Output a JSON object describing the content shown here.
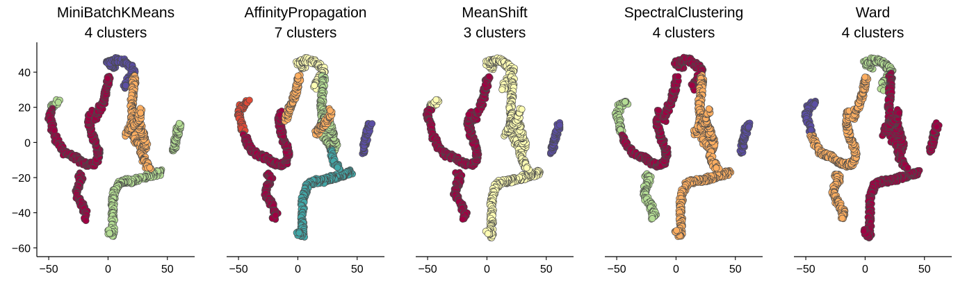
{
  "chart_data": {
    "type": "scatter",
    "shared_x_ticks": [
      -50,
      0,
      50
    ],
    "shared_y_ticks": [
      -60,
      -40,
      -20,
      0,
      20,
      40
    ],
    "xlim": [
      -60,
      73
    ],
    "ylim": [
      -65,
      57
    ],
    "palette": {
      "crimson": "#9e0142",
      "red": "#e04a36",
      "orange": "#fdae61",
      "yellow": "#fefdb4",
      "green": "#b4dd94",
      "teal": "#43a8a8",
      "purple": "#5b4ea3"
    },
    "trajectories": {
      "top_arc": [
        [
          5,
          43
        ],
        [
          2,
          44
        ],
        [
          0,
          45
        ],
        [
          3,
          46
        ],
        [
          7,
          47
        ],
        [
          12,
          46.5
        ],
        [
          15,
          45
        ],
        [
          17,
          44
        ]
      ],
      "top_right_dip": [
        [
          17,
          44
        ],
        [
          19,
          43
        ],
        [
          21,
          42
        ],
        [
          22,
          41
        ],
        [
          21,
          39
        ],
        [
          19,
          37
        ],
        [
          17,
          35
        ],
        [
          15,
          33
        ],
        [
          14,
          31
        ]
      ],
      "left_arm_top": [
        [
          -48,
          20
        ],
        [
          -46,
          21
        ],
        [
          -44,
          22
        ],
        [
          -42,
          23
        ]
      ],
      "left_arm": [
        [
          -48,
          18
        ],
        [
          -50,
          16
        ],
        [
          -49,
          14
        ],
        [
          -48,
          12
        ],
        [
          -47,
          10
        ],
        [
          -47,
          8
        ],
        [
          -46,
          6
        ]
      ],
      "left_hook": [
        [
          -45,
          3
        ],
        [
          -43,
          1
        ],
        [
          -42,
          -1
        ],
        [
          -40,
          -3
        ],
        [
          -38,
          -5
        ],
        [
          -34,
          -7
        ],
        [
          -30,
          -8
        ],
        [
          -26,
          -9
        ],
        [
          -23,
          -11
        ],
        [
          -19,
          -12
        ],
        [
          -15,
          -13
        ],
        [
          -11,
          -12
        ],
        [
          -9,
          -10
        ],
        [
          -8,
          -7
        ],
        [
          -9,
          -3
        ],
        [
          -11,
          0
        ],
        [
          -13,
          3
        ],
        [
          -14,
          6
        ],
        [
          -15,
          9
        ],
        [
          -16,
          12
        ],
        [
          -15,
          15
        ],
        [
          -14,
          17
        ]
      ],
      "center_spine": [
        [
          -10,
          13
        ],
        [
          -9,
          16
        ],
        [
          -7,
          19
        ],
        [
          -5,
          22
        ],
        [
          -3,
          25
        ],
        [
          -2,
          28
        ],
        [
          -1,
          31
        ],
        [
          0,
          34
        ],
        [
          1,
          37
        ]
      ],
      "lower_left": [
        [
          -25,
          -18
        ],
        [
          -22,
          -20
        ],
        [
          -24,
          -23
        ],
        [
          -26,
          -26
        ],
        [
          -27,
          -29
        ],
        [
          -25,
          -32
        ],
        [
          -22,
          -35
        ],
        [
          -20,
          -38
        ],
        [
          -18,
          -41
        ],
        [
          -20,
          -43
        ]
      ],
      "right_col_upper": [
        [
          21,
          38
        ],
        [
          22,
          35
        ],
        [
          21,
          31
        ],
        [
          21,
          27
        ],
        [
          20,
          23
        ],
        [
          20,
          19
        ],
        [
          21,
          15
        ],
        [
          20,
          11
        ],
        [
          21,
          7
        ],
        [
          22,
          4
        ]
      ],
      "right_col_lower": [
        [
          22,
          3
        ],
        [
          23,
          1
        ],
        [
          25,
          0
        ],
        [
          28,
          -2
        ],
        [
          30,
          -4
        ],
        [
          32,
          -1
        ],
        [
          30,
          3
        ],
        [
          28,
          7
        ],
        [
          26,
          12
        ]
      ],
      "center_flare": [
        [
          16,
          5
        ],
        [
          18,
          8
        ],
        [
          22,
          10
        ],
        [
          24,
          12
        ],
        [
          26,
          14
        ],
        [
          27,
          16
        ],
        [
          28,
          18
        ]
      ],
      "far_right": [
        [
          55,
          -5
        ],
        [
          56,
          -2
        ],
        [
          57,
          1
        ],
        [
          58,
          4
        ],
        [
          59,
          7
        ],
        [
          60,
          9
        ],
        [
          61,
          10
        ]
      ],
      "bottom_curve": [
        [
          45,
          -17
        ],
        [
          40,
          -18
        ],
        [
          35,
          -19
        ],
        [
          30,
          -20
        ],
        [
          25,
          -21
        ],
        [
          20,
          -22
        ],
        [
          15,
          -22
        ],
        [
          10,
          -23
        ],
        [
          7,
          -26
        ],
        [
          5,
          -30
        ],
        [
          4,
          -34
        ],
        [
          4,
          -38
        ],
        [
          4,
          -42
        ],
        [
          4,
          -46
        ],
        [
          4,
          -50
        ],
        [
          4,
          -53
        ],
        [
          2,
          -52
        ],
        [
          0,
          -51
        ]
      ],
      "right_small_lower": [
        [
          28,
          -5
        ],
        [
          29,
          -8
        ],
        [
          31,
          -11
        ],
        [
          33,
          -13
        ],
        [
          35,
          -14
        ]
      ]
    },
    "panels": [
      {
        "title_line1": "MiniBatchKMeans",
        "title_line2": "4 clusters",
        "show_y_axis": true,
        "groups": [
          {
            "traj": "top_arc",
            "color": "purple"
          },
          {
            "traj": "top_right_dip",
            "color": "purple"
          },
          {
            "traj": "left_arm_top",
            "color": "green"
          },
          {
            "traj": "left_arm",
            "color": "crimson"
          },
          {
            "traj": "left_hook",
            "color": "crimson"
          },
          {
            "traj": "center_spine",
            "color": "crimson"
          },
          {
            "traj": "lower_left",
            "color": "crimson"
          },
          {
            "traj": "right_col_upper",
            "color": "orange"
          },
          {
            "traj": "right_col_lower",
            "color": "orange"
          },
          {
            "traj": "center_flare",
            "color": "orange"
          },
          {
            "traj": "far_right",
            "color": "green"
          },
          {
            "traj": "bottom_curve",
            "color": "green"
          },
          {
            "traj": "right_small_lower",
            "color": "orange"
          }
        ]
      },
      {
        "title_line1": "AffinityPropagation",
        "title_line2": "7 clusters",
        "show_y_axis": false,
        "groups": [
          {
            "traj": "top_arc",
            "color": "yellow"
          },
          {
            "traj": "top_right_dip",
            "color": "yellow"
          },
          {
            "traj": "left_arm_top",
            "color": "red"
          },
          {
            "traj": "left_arm",
            "color": "red"
          },
          {
            "traj": "left_hook",
            "color": "crimson"
          },
          {
            "traj": "center_spine",
            "color": "orange"
          },
          {
            "traj": "lower_left",
            "color": "crimson"
          },
          {
            "traj": "right_col_upper",
            "color": "green"
          },
          {
            "traj": "right_col_lower",
            "color": "green"
          },
          {
            "traj": "center_flare",
            "color": "orange"
          },
          {
            "traj": "far_right",
            "color": "purple"
          },
          {
            "traj": "bottom_curve",
            "color": "teal"
          },
          {
            "traj": "right_small_lower",
            "color": "teal"
          }
        ]
      },
      {
        "title_line1": "MeanShift",
        "title_line2": "3 clusters",
        "show_y_axis": false,
        "groups": [
          {
            "traj": "top_arc",
            "color": "yellow"
          },
          {
            "traj": "top_right_dip",
            "color": "yellow"
          },
          {
            "traj": "left_arm_top",
            "color": "yellow"
          },
          {
            "traj": "left_arm",
            "color": "crimson"
          },
          {
            "traj": "left_hook",
            "color": "crimson"
          },
          {
            "traj": "center_spine",
            "color": "crimson"
          },
          {
            "traj": "lower_left",
            "color": "crimson"
          },
          {
            "traj": "right_col_upper",
            "color": "yellow"
          },
          {
            "traj": "right_col_lower",
            "color": "yellow"
          },
          {
            "traj": "center_flare",
            "color": "yellow"
          },
          {
            "traj": "far_right",
            "color": "purple"
          },
          {
            "traj": "bottom_curve",
            "color": "yellow"
          },
          {
            "traj": "right_small_lower",
            "color": "yellow"
          }
        ]
      },
      {
        "title_line1": "SpectralClustering",
        "title_line2": "4 clusters",
        "show_y_axis": false,
        "groups": [
          {
            "traj": "top_arc",
            "color": "crimson"
          },
          {
            "traj": "top_right_dip",
            "color": "crimson"
          },
          {
            "traj": "left_arm_top",
            "color": "green"
          },
          {
            "traj": "left_arm",
            "color": "green"
          },
          {
            "traj": "left_hook",
            "color": "crimson"
          },
          {
            "traj": "center_spine",
            "color": "crimson"
          },
          {
            "traj": "lower_left",
            "color": "green"
          },
          {
            "traj": "right_col_upper",
            "color": "orange"
          },
          {
            "traj": "right_col_lower",
            "color": "orange"
          },
          {
            "traj": "center_flare",
            "color": "orange"
          },
          {
            "traj": "far_right",
            "color": "purple"
          },
          {
            "traj": "bottom_curve",
            "color": "orange"
          },
          {
            "traj": "right_small_lower",
            "color": "orange"
          }
        ]
      },
      {
        "title_line1": "Ward",
        "title_line2": "4 clusters",
        "show_y_axis": false,
        "groups": [
          {
            "traj": "top_arc",
            "color": "green"
          },
          {
            "traj": "top_right_dip",
            "color": "green"
          },
          {
            "traj": "left_arm_top",
            "color": "purple"
          },
          {
            "traj": "left_arm",
            "color": "purple"
          },
          {
            "traj": "left_hook",
            "color": "orange"
          },
          {
            "traj": "center_spine",
            "color": "orange"
          },
          {
            "traj": "lower_left",
            "color": "orange"
          },
          {
            "traj": "right_col_upper",
            "color": "crimson"
          },
          {
            "traj": "right_col_lower",
            "color": "crimson"
          },
          {
            "traj": "center_flare",
            "color": "crimson"
          },
          {
            "traj": "far_right",
            "color": "crimson"
          },
          {
            "traj": "bottom_curve",
            "color": "crimson"
          },
          {
            "traj": "right_small_lower",
            "color": "crimson"
          }
        ]
      }
    ]
  }
}
